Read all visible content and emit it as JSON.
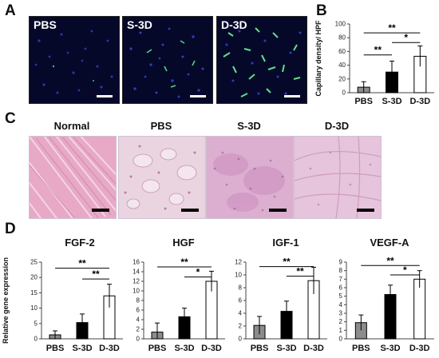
{
  "panel_letters": {
    "a": "A",
    "b": "B",
    "c": "C",
    "d": "D"
  },
  "panel_a": {
    "images": [
      "PBS",
      "S-3D",
      "D-3D"
    ]
  },
  "panel_c": {
    "images": [
      "Normal",
      "PBS",
      "S-3D",
      "D-3D"
    ]
  },
  "colors": {
    "pbs_bar": "#8c8c8c",
    "s3d_bar": "#000000",
    "d3d_bar": "#ffffff",
    "fluor_background": "#06082a",
    "he_stain": "#e6b4cc"
  },
  "chart_data": [
    {
      "id": "B",
      "type": "bar",
      "title": "",
      "ylabel": "Capillary density/ HPF",
      "xlabel": "",
      "categories": [
        "PBS",
        "S-3D",
        "D-3D"
      ],
      "values": [
        8,
        30,
        53
      ],
      "errors": [
        8,
        16,
        15
      ],
      "ylim": [
        0,
        100
      ],
      "yticks": [
        0,
        20,
        40,
        60,
        80,
        100
      ],
      "significance": [
        {
          "from": 0,
          "to": 1,
          "level": 55,
          "label": "**"
        },
        {
          "from": 0,
          "to": 2,
          "level": 87,
          "label": "**"
        },
        {
          "from": 1,
          "to": 2,
          "level": 73,
          "label": "*"
        }
      ],
      "grid": false,
      "legend": "none"
    },
    {
      "id": "FGF-2",
      "type": "bar",
      "title": "FGF-2",
      "ylabel": "Relative gene expression",
      "categories": [
        "PBS",
        "S-3D",
        "D-3D"
      ],
      "values": [
        1.3,
        5.3,
        14.0
      ],
      "errors": [
        1.3,
        2.8,
        3.8
      ],
      "ylim": [
        0,
        25
      ],
      "yticks": [
        0,
        5,
        10,
        15,
        20,
        25
      ],
      "significance": [
        {
          "from": 0,
          "to": 2,
          "level": 23,
          "label": "**"
        },
        {
          "from": 1,
          "to": 2,
          "level": 19.5,
          "label": "**"
        }
      ],
      "grid": false,
      "legend": "none"
    },
    {
      "id": "HGF",
      "type": "bar",
      "title": "HGF",
      "ylabel": "",
      "categories": [
        "PBS",
        "S-3D",
        "D-3D"
      ],
      "values": [
        1.4,
        4.6,
        12.0
      ],
      "errors": [
        1.9,
        1.8,
        2.1
      ],
      "ylim": [
        0,
        16
      ],
      "yticks": [
        0,
        2,
        4,
        6,
        8,
        10,
        12,
        14,
        16
      ],
      "significance": [
        {
          "from": 0,
          "to": 2,
          "level": 15.0,
          "label": "**"
        },
        {
          "from": 1,
          "to": 2,
          "level": 12.9,
          "label": "*"
        }
      ],
      "grid": false,
      "legend": "none"
    },
    {
      "id": "IGF-1",
      "type": "bar",
      "title": "IGF-1",
      "ylabel": "",
      "categories": [
        "PBS",
        "S-3D",
        "D-3D"
      ],
      "values": [
        2.1,
        4.3,
        9.1
      ],
      "errors": [
        1.4,
        1.6,
        2.1
      ],
      "ylim": [
        0,
        12
      ],
      "yticks": [
        0,
        2,
        4,
        6,
        8,
        10,
        12
      ],
      "significance": [
        {
          "from": 0,
          "to": 2,
          "level": 11.3,
          "label": "**"
        },
        {
          "from": 1,
          "to": 2,
          "level": 9.8,
          "label": "**"
        }
      ],
      "grid": false,
      "legend": "none"
    },
    {
      "id": "VEGF-A",
      "type": "bar",
      "title": "VEGF-A",
      "ylabel": "",
      "categories": [
        "PBS",
        "S-3D",
        "D-3D"
      ],
      "values": [
        1.9,
        5.2,
        7.0
      ],
      "errors": [
        0.9,
        1.1,
        1.0
      ],
      "ylim": [
        0,
        9
      ],
      "yticks": [
        0,
        1,
        2,
        3,
        4,
        5,
        6,
        7,
        8,
        9
      ],
      "significance": [
        {
          "from": 0,
          "to": 2,
          "level": 8.6,
          "label": "**"
        },
        {
          "from": 1,
          "to": 2,
          "level": 7.5,
          "label": "*"
        }
      ],
      "grid": false,
      "legend": "none"
    }
  ]
}
